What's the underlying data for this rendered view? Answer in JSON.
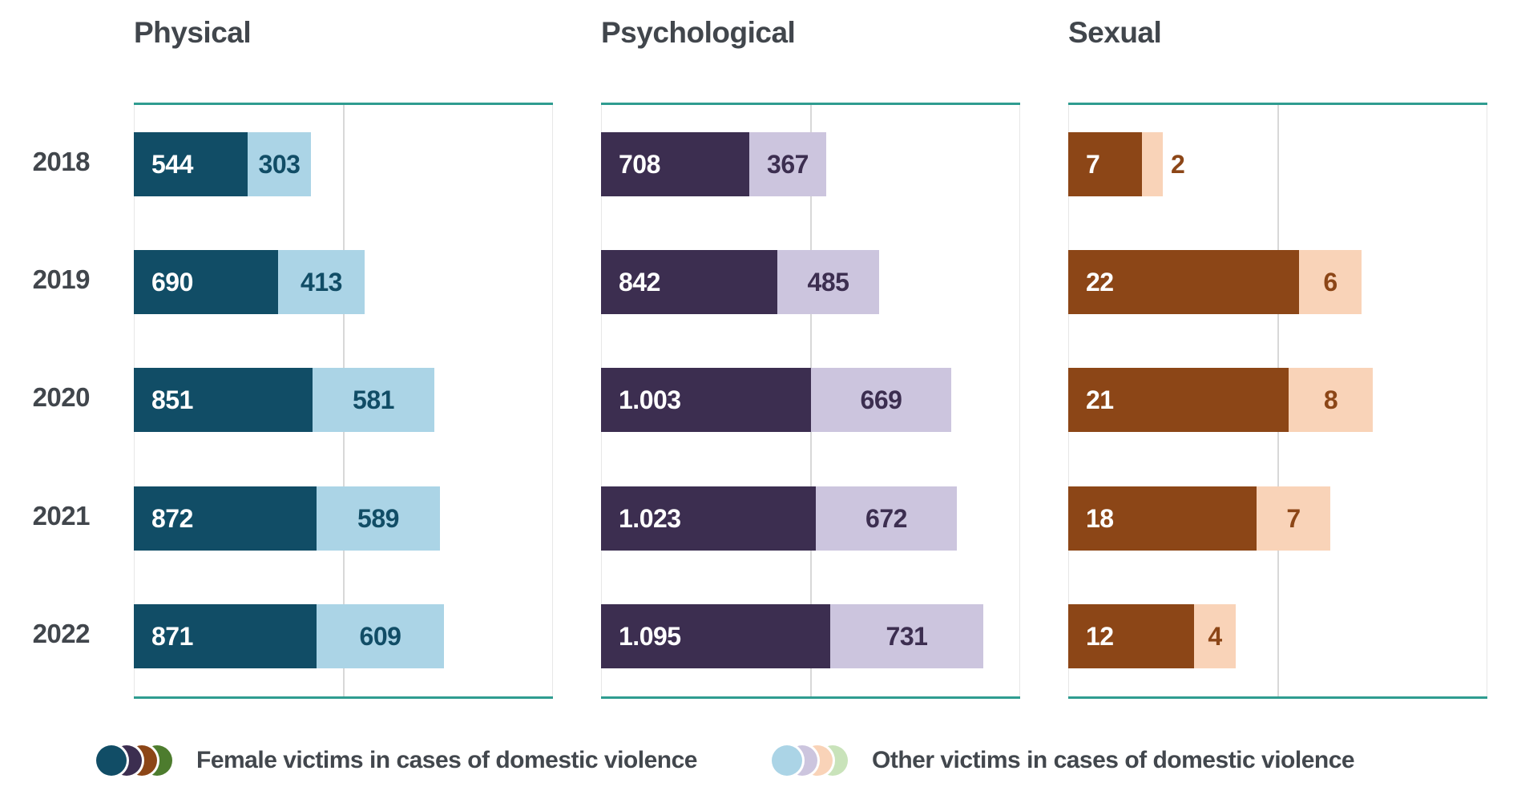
{
  "legend": {
    "female": {
      "label": "Female victims in cases of domestic violence",
      "colors": [
        "#114d66",
        "#3c2e50",
        "#8c4617",
        "#4d7c2e"
      ]
    },
    "other": {
      "label": "Other victims in cases of domestic violence",
      "colors": [
        "#abd4e6",
        "#ccc5de",
        "#f9d3b8",
        "#c9e3ba"
      ]
    }
  },
  "years": [
    "2018",
    "2019",
    "2020",
    "2021",
    "2022"
  ],
  "accent_colors": {
    "panel_border_teal": "#2f9c90",
    "gridline": "#d8d8d8",
    "title_text": "#41464c"
  },
  "chart_data": [
    {
      "type": "bar",
      "orientation": "horizontal",
      "stacked": true,
      "title": "Physical",
      "categories": [
        "2018",
        "2019",
        "2020",
        "2021",
        "2022"
      ],
      "xlim": [
        0,
        2000
      ],
      "gridline_at": 1000,
      "grid": "on",
      "legend_position": "bottom",
      "series": [
        {
          "name": "Female victims in cases of domestic violence",
          "values": [
            544,
            690,
            851,
            872,
            871
          ],
          "labels": [
            "544",
            "690",
            "851",
            "872",
            "871"
          ],
          "color": "#114d66",
          "label_color": "#ffffff"
        },
        {
          "name": "Other victims in cases of domestic violence",
          "values": [
            303,
            413,
            581,
            589,
            609
          ],
          "labels": [
            "303",
            "413",
            "581",
            "589",
            "609"
          ],
          "color": "#abd4e6",
          "label_color": "#114d66"
        }
      ]
    },
    {
      "type": "bar",
      "orientation": "horizontal",
      "stacked": true,
      "title": "Psychological",
      "categories": [
        "2018",
        "2019",
        "2020",
        "2021",
        "2022"
      ],
      "xlim": [
        0,
        2000
      ],
      "gridline_at": 1000,
      "grid": "on",
      "legend_position": "bottom",
      "series": [
        {
          "name": "Female victims in cases of domestic violence",
          "values": [
            708,
            842,
            1003,
            1023,
            1095
          ],
          "labels": [
            "708",
            "842",
            "1.003",
            "1.023",
            "1.095"
          ],
          "color": "#3c2e50",
          "label_color": "#ffffff"
        },
        {
          "name": "Other victims in cases of domestic violence",
          "values": [
            367,
            485,
            669,
            672,
            731
          ],
          "labels": [
            "367",
            "485",
            "669",
            "672",
            "731"
          ],
          "color": "#ccc5de",
          "label_color": "#3c2e50"
        }
      ]
    },
    {
      "type": "bar",
      "orientation": "horizontal",
      "stacked": true,
      "title": "Sexual",
      "categories": [
        "2018",
        "2019",
        "2020",
        "2021",
        "2022"
      ],
      "xlim": [
        0,
        40
      ],
      "gridline_at": 20,
      "grid": "on",
      "legend_position": "bottom",
      "series": [
        {
          "name": "Female victims in cases of domestic violence",
          "values": [
            7,
            22,
            21,
            18,
            12
          ],
          "labels": [
            "7",
            "22",
            "21",
            "18",
            "12"
          ],
          "color": "#8c4617",
          "label_color": "#ffffff"
        },
        {
          "name": "Other victims in cases of domestic violence",
          "values": [
            2,
            6,
            8,
            7,
            4
          ],
          "labels": [
            "2",
            "6",
            "8",
            "7",
            "4"
          ],
          "color": "#f9d3b8",
          "label_color": "#8c4617"
        }
      ]
    }
  ]
}
